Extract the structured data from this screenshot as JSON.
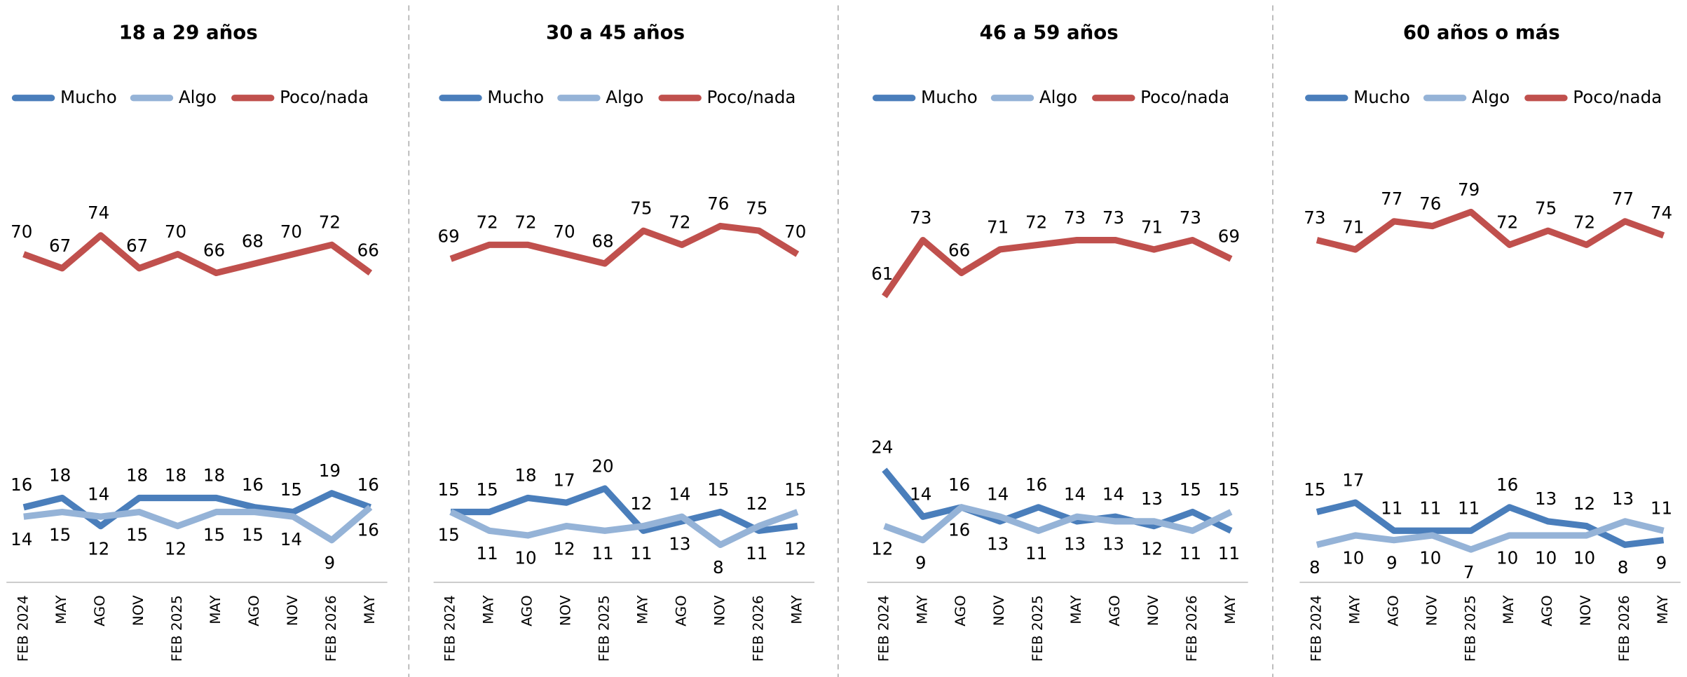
{
  "chart_data": [
    {
      "type": "line",
      "title": "18 a 29 años",
      "categories": [
        "FEB 2024",
        "MAY",
        "AGO",
        "NOV",
        "FEB 2025",
        "MAY",
        "AGO",
        "NOV",
        "FEB 2026",
        "MAY"
      ],
      "ylim": [
        0,
        100
      ],
      "series": [
        {
          "name": "Mucho",
          "color": "#4a7ebb",
          "values": [
            16,
            18,
            12,
            18,
            18,
            18,
            16,
            15,
            19,
            16
          ]
        },
        {
          "name": "Algo",
          "color": "#95b3d7",
          "values": [
            14,
            15,
            14,
            15,
            12,
            15,
            15,
            14,
            9,
            16
          ]
        },
        {
          "name": "Poco/nada",
          "color": "#c0504d",
          "values": [
            70,
            67,
            74,
            67,
            70,
            66,
            68,
            70,
            72,
            66
          ]
        }
      ]
    },
    {
      "type": "line",
      "title": "30 a 45 años",
      "categories": [
        "FEB 2024",
        "MAY",
        "AGO",
        "NOV",
        "FEB 2025",
        "MAY",
        "AGO",
        "NOV",
        "FEB 2026",
        "MAY"
      ],
      "ylim": [
        0,
        100
      ],
      "series": [
        {
          "name": "Mucho",
          "color": "#4a7ebb",
          "values": [
            15,
            15,
            18,
            17,
            20,
            11,
            13,
            15,
            11,
            12
          ]
        },
        {
          "name": "Algo",
          "color": "#95b3d7",
          "values": [
            15,
            11,
            10,
            12,
            11,
            12,
            14,
            8,
            12,
            15
          ]
        },
        {
          "name": "Poco/nada",
          "color": "#c0504d",
          "values": [
            69,
            72,
            72,
            70,
            68,
            75,
            72,
            76,
            75,
            70
          ]
        }
      ]
    },
    {
      "type": "line",
      "title": "46 a 59 años",
      "categories": [
        "FEB 2024",
        "MAY",
        "AGO",
        "NOV",
        "FEB 2025",
        "MAY",
        "AGO",
        "NOV",
        "FEB 2026",
        "MAY"
      ],
      "ylim": [
        0,
        100
      ],
      "series": [
        {
          "name": "Mucho",
          "color": "#4a7ebb",
          "values": [
            24,
            14,
            16,
            13,
            16,
            13,
            14,
            12,
            15,
            11
          ]
        },
        {
          "name": "Algo",
          "color": "#95b3d7",
          "values": [
            12,
            9,
            16,
            14,
            11,
            14,
            13,
            13,
            11,
            15
          ]
        },
        {
          "name": "Poco/nada",
          "color": "#c0504d",
          "values": [
            61,
            73,
            66,
            71,
            72,
            73,
            73,
            71,
            73,
            69
          ]
        }
      ]
    },
    {
      "type": "line",
      "title": "60 años o más",
      "categories": [
        "FEB 2024",
        "MAY",
        "AGO",
        "NOV",
        "FEB 2025",
        "MAY",
        "AGO",
        "NOV",
        "FEB 2026",
        "MAY"
      ],
      "ylim": [
        0,
        100
      ],
      "series": [
        {
          "name": "Mucho",
          "color": "#4a7ebb",
          "values": [
            15,
            17,
            11,
            11,
            11,
            16,
            13,
            12,
            8,
            9
          ]
        },
        {
          "name": "Algo",
          "color": "#95b3d7",
          "values": [
            8,
            10,
            9,
            10,
            7,
            10,
            10,
            10,
            13,
            11
          ]
        },
        {
          "name": "Poco/nada",
          "color": "#c0504d",
          "values": [
            73,
            71,
            77,
            76,
            79,
            72,
            75,
            72,
            77,
            74
          ]
        }
      ]
    }
  ]
}
